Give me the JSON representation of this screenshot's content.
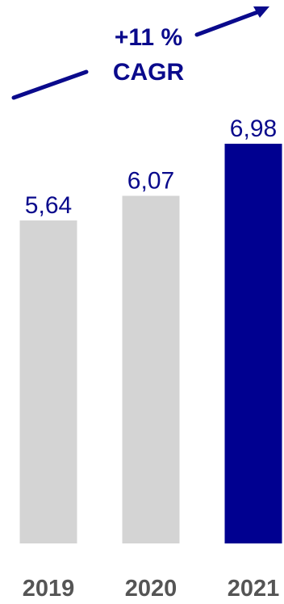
{
  "chart_data": {
    "type": "bar",
    "categories": [
      "2019",
      "2020",
      "2021"
    ],
    "values": [
      5.64,
      6.07,
      6.98
    ],
    "value_labels": [
      "5,64",
      "6,07",
      "6,98"
    ],
    "title": "",
    "xlabel": "",
    "ylabel": "",
    "ylim": [
      0,
      6.98
    ],
    "grid": false,
    "colors": [
      "#d4d4d4",
      "#d4d4d4",
      "#000090"
    ],
    "annotation": {
      "line1": "+11 %",
      "line2": "CAGR",
      "color": "#0a0a8c"
    }
  }
}
